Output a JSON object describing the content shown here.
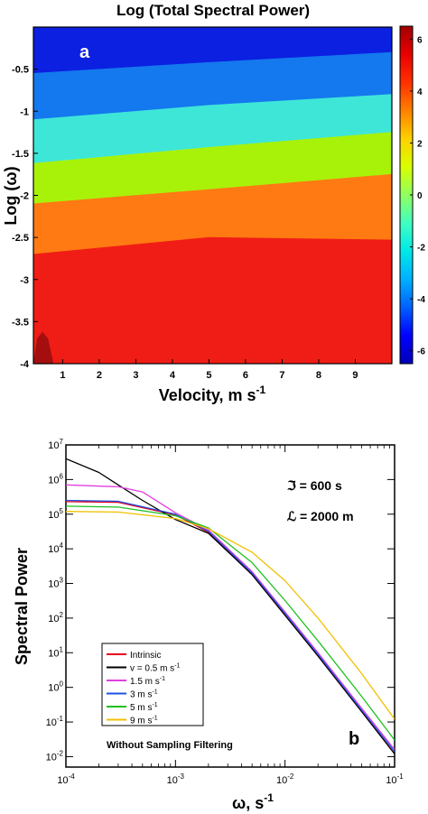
{
  "chart_data": [
    {
      "type": "heatmap",
      "title": "Log (Total Spectral Power)",
      "panel_label": "a",
      "xlabel": "Velocity,  m s",
      "xlabel_sup": "-1",
      "ylabel": "Log (ω)",
      "xlim": [
        0.2,
        10
      ],
      "ylim": [
        -4,
        0
      ],
      "x_ticks": [
        1,
        2,
        3,
        4,
        5,
        6,
        7,
        8,
        9
      ],
      "y_ticks": [
        -0.5,
        -1,
        -1.5,
        -2,
        -2.5,
        -3,
        -3.5,
        -4
      ],
      "y_tick_labels": [
        "-0.5",
        "-1",
        "-1.5",
        "-2",
        "-2.5",
        "-3",
        "-3.5",
        "-4"
      ],
      "colorbar": {
        "range": [
          -6.5,
          6.5
        ],
        "ticks": [
          6,
          4,
          2,
          0,
          -2,
          -4,
          -6
        ],
        "tick_labels": [
          "6",
          "4",
          "2",
          "0",
          "-2",
          "-4",
          "-6"
        ],
        "colors": [
          "#0000b8",
          "#0000ff",
          "#0060ff",
          "#00b0ff",
          "#00e8e8",
          "#40ffc0",
          "#90ff60",
          "#d8ff00",
          "#ffd000",
          "#ff8000",
          "#ff3000",
          "#e80000",
          "#a00000"
        ]
      },
      "contour_bands": [
        {
          "color": "#0b20e0",
          "boundary_x": [
            0.2,
            5,
            10
          ],
          "boundary_y": [
            -0.55,
            -0.42,
            -0.3
          ]
        },
        {
          "color": "#1478ee",
          "boundary_x": [
            0.2,
            5,
            10
          ],
          "boundary_y": [
            -1.1,
            -0.93,
            -0.8
          ]
        },
        {
          "color": "#3ee6d8",
          "boundary_x": [
            0.2,
            5,
            10
          ],
          "boundary_y": [
            -1.62,
            -1.43,
            -1.25
          ]
        },
        {
          "color": "#a8f20a",
          "boundary_x": [
            0.2,
            5,
            10
          ],
          "boundary_y": [
            -2.1,
            -1.93,
            -1.75
          ]
        },
        {
          "color": "#ff7a12",
          "boundary_x": [
            0.2,
            5,
            10
          ],
          "boundary_y": [
            -2.7,
            -2.5,
            -2.53
          ]
        },
        {
          "color": "#f01d16",
          "boundary_x": [
            0.2,
            10
          ],
          "boundary_y": [
            -4,
            -4
          ]
        }
      ],
      "dark_region": {
        "color": "#a50e0e",
        "x": [
          0.2,
          0.3,
          0.45,
          0.6,
          0.75
        ],
        "y": [
          -4,
          -3.7,
          -3.62,
          -3.7,
          -4
        ]
      }
    },
    {
      "type": "line",
      "xscale": "log",
      "yscale": "log",
      "panel_label": "b",
      "xlabel": "ω, s",
      "xlabel_sup": "-1",
      "ylabel": "Spectral Power",
      "xlim": [
        0.0001,
        0.1
      ],
      "ylim": [
        0.005,
        10000000
      ],
      "x_ticks": [
        0.0001,
        0.001,
        0.01,
        0.1
      ],
      "x_tick_base": [
        "10",
        "10",
        "10",
        "10"
      ],
      "x_tick_exp": [
        "-4",
        "-3",
        "-2",
        "-1"
      ],
      "y_ticks": [
        0.01,
        0.1,
        1,
        10,
        100,
        1000,
        10000,
        100000,
        1000000,
        10000000
      ],
      "y_tick_base": [
        "10",
        "10",
        "10",
        "10",
        "10",
        "10",
        "10",
        "10",
        "10",
        "10"
      ],
      "y_tick_exp": [
        "-2",
        "-1",
        "0",
        "1",
        "2",
        "3",
        "4",
        "5",
        "6",
        "7"
      ],
      "annotations": [
        {
          "symbol": "ℑ",
          "text": " = 600 s"
        },
        {
          "symbol": "ℒ",
          "text": " = 2000 m"
        },
        {
          "text": "Without Sampling Filtering"
        }
      ],
      "legend": {
        "placement": "lower-left"
      },
      "series": [
        {
          "name": "Intrinsic",
          "sup": "",
          "color": "#e8001c",
          "x": [
            0.0001,
            0.0003,
            0.001,
            0.002,
            0.005,
            0.01,
            0.02,
            0.05,
            0.1
          ],
          "y": [
            230000,
            220000,
            95000,
            30000,
            1800,
            120,
            8,
            0.2,
            0.012
          ]
        },
        {
          "name": "v = 0.5 m s",
          "sup": "-1",
          "color": "#000000",
          "x": [
            0.0001,
            0.0002,
            0.0003,
            0.0005,
            0.001,
            0.002,
            0.005,
            0.01,
            0.02,
            0.05,
            0.1
          ],
          "y": [
            4000000,
            1600000,
            700000,
            250000,
            70000,
            28000,
            1800,
            120,
            8,
            0.2,
            0.012
          ]
        },
        {
          "name": "1.5 m s",
          "sup": "-1",
          "color": "#e040e0",
          "x": [
            0.0001,
            0.0003,
            0.0005,
            0.001,
            0.002,
            0.005,
            0.01,
            0.02,
            0.05,
            0.1
          ],
          "y": [
            700000,
            620000,
            440000,
            110000,
            35000,
            2200,
            150,
            10,
            0.25,
            0.016
          ]
        },
        {
          "name": "3 m s",
          "sup": "-1",
          "color": "#2050e0",
          "x": [
            0.0001,
            0.0003,
            0.001,
            0.002,
            0.005,
            0.01,
            0.02,
            0.05,
            0.1
          ],
          "y": [
            250000,
            235000,
            100000,
            32000,
            2000,
            135,
            9,
            0.22,
            0.014
          ]
        },
        {
          "name": "5 m s",
          "sup": "-1",
          "color": "#20c020",
          "x": [
            0.0001,
            0.0003,
            0.001,
            0.002,
            0.005,
            0.01,
            0.02,
            0.05,
            0.1
          ],
          "y": [
            170000,
            160000,
            90000,
            40000,
            4000,
            320,
            22,
            0.55,
            0.03
          ]
        },
        {
          "name": "9 m s",
          "sup": "-1",
          "color": "#f0c000",
          "x": [
            0.0001,
            0.0003,
            0.001,
            0.002,
            0.005,
            0.01,
            0.02,
            0.05,
            0.1
          ],
          "y": [
            120000,
            115000,
            75000,
            38000,
            8000,
            1200,
            100,
            2.5,
            0.12
          ]
        }
      ]
    }
  ]
}
